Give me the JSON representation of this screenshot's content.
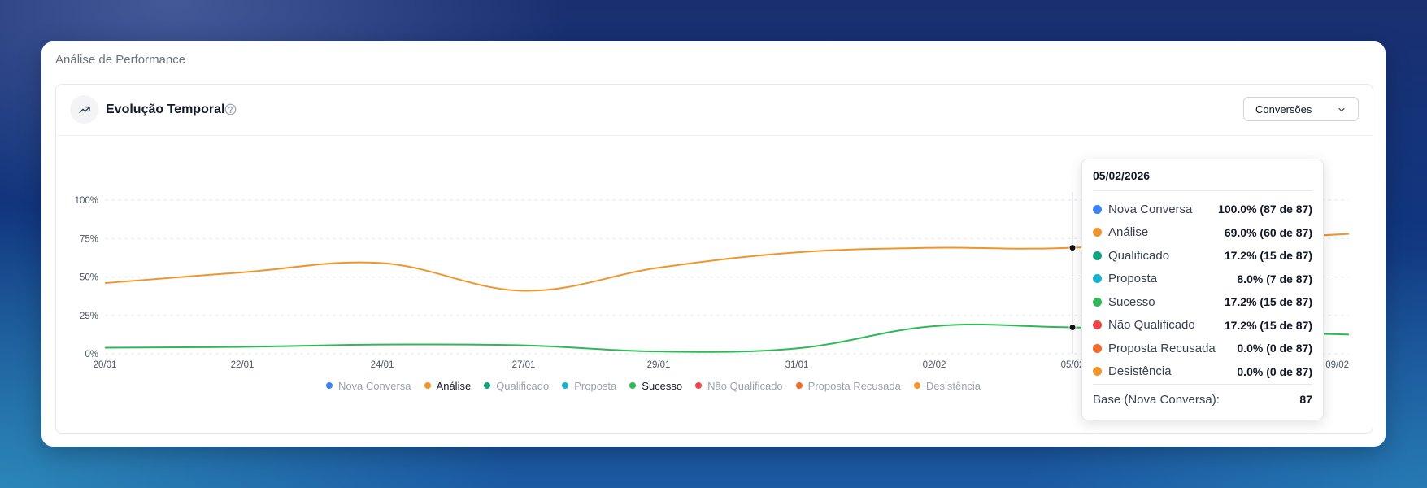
{
  "outer_title": "Análise de Performance",
  "chart_title": "Evolução Temporal",
  "select": {
    "value": "Conversões"
  },
  "chart_data": {
    "type": "line",
    "x": [
      "20/01",
      "22/01",
      "24/01",
      "27/01",
      "29/01",
      "31/01",
      "02/02",
      "05/02",
      "09/02"
    ],
    "y_ticks": [
      "100%",
      "75%",
      "50%",
      "25%",
      "0%"
    ],
    "ylim": [
      0,
      100
    ],
    "series": [
      {
        "name": "Análise",
        "color": "#f0952b",
        "values": [
          46,
          53,
          59,
          41,
          56,
          66,
          69,
          69,
          78
        ],
        "visible": true
      },
      {
        "name": "Sucesso",
        "color": "#2eb857",
        "values": [
          4,
          4.5,
          6,
          5.5,
          1.5,
          3.5,
          18,
          17.2,
          12.5
        ],
        "visible": true
      }
    ],
    "highlight_index": 7
  },
  "legend": [
    {
      "label": "Nova Conversa",
      "color": "#3b82f6",
      "active": false
    },
    {
      "label": "Análise",
      "color": "#f0952b",
      "active": true
    },
    {
      "label": "Qualificado",
      "color": "#10a37f",
      "active": false
    },
    {
      "label": "Proposta",
      "color": "#17b3cf",
      "active": false
    },
    {
      "label": "Sucesso",
      "color": "#2eb857",
      "active": true
    },
    {
      "label": "Não Qualificado",
      "color": "#ef4444",
      "active": false
    },
    {
      "label": "Proposta Recusada",
      "color": "#f26b2a",
      "active": false
    },
    {
      "label": "Desistência",
      "color": "#f0952b",
      "active": false
    }
  ],
  "tooltip": {
    "date": "05/02/2026",
    "rows": [
      {
        "name": "Nova Conversa",
        "value": "100.0% (87 de 87)",
        "color": "#3b82f6"
      },
      {
        "name": "Análise",
        "value": "69.0% (60 de 87)",
        "color": "#f0952b"
      },
      {
        "name": "Qualificado",
        "value": "17.2% (15 de 87)",
        "color": "#10a37f"
      },
      {
        "name": "Proposta",
        "value": "8.0% (7 de 87)",
        "color": "#17b3cf"
      },
      {
        "name": "Sucesso",
        "value": "17.2% (15 de 87)",
        "color": "#2eb857"
      },
      {
        "name": "Não Qualificado",
        "value": "17.2% (15 de 87)",
        "color": "#ef4444"
      },
      {
        "name": "Proposta Recusada",
        "value": "0.0% (0 de 87)",
        "color": "#f26b2a"
      },
      {
        "name": "Desistência",
        "value": "0.0% (0 de 87)",
        "color": "#f0952b"
      }
    ],
    "footer_label": "Base (Nova Conversa):",
    "footer_value": "87"
  }
}
